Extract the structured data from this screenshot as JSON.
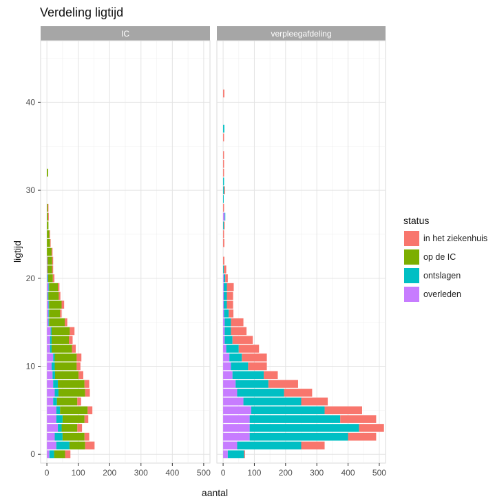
{
  "chart_data": {
    "type": "bar",
    "orientation": "horizontal",
    "stacked": true,
    "title": "Verdeling ligtijd",
    "xlabel": "aantal",
    "ylabel": "ligtijd",
    "xlim": [
      -20,
      520
    ],
    "ylim": [
      -1,
      47
    ],
    "xticks": [
      0,
      100,
      200,
      300,
      400,
      500
    ],
    "yticks": [
      0,
      10,
      20,
      30,
      40
    ],
    "grid": true,
    "legend": {
      "title": "status",
      "position": "right"
    },
    "stack_order": [
      "overleden",
      "ontslagen",
      "op de IC",
      "in het ziekenhuis"
    ],
    "series": [
      {
        "name": "in het ziekenhuis",
        "color": "#F8766D"
      },
      {
        "name": "op de IC",
        "color": "#7CAE00"
      },
      {
        "name": "ontslagen",
        "color": "#00BFC4"
      },
      {
        "name": "overleden",
        "color": "#C77CFF"
      }
    ],
    "panels": [
      {
        "title": "IC",
        "data": [
          {
            "y": 0,
            "overleden": 8,
            "ontslagen": 15,
            "op de IC": 35,
            "in het ziekenhuis": 17
          },
          {
            "y": 1,
            "overleden": 30,
            "ontslagen": 42,
            "op de IC": 50,
            "in het ziekenhuis": 30
          },
          {
            "y": 2,
            "overleden": 25,
            "ontslagen": 25,
            "op de IC": 70,
            "in het ziekenhuis": 15
          },
          {
            "y": 3,
            "overleden": 35,
            "ontslagen": 12,
            "op de IC": 50,
            "in het ziekenhuis": 15
          },
          {
            "y": 4,
            "overleden": 30,
            "ontslagen": 20,
            "op de IC": 70,
            "in het ziekenhuis": 12
          },
          {
            "y": 5,
            "overleden": 30,
            "ontslagen": 12,
            "op de IC": 88,
            "in het ziekenhuis": 15
          },
          {
            "y": 6,
            "overleden": 20,
            "ontslagen": 12,
            "op de IC": 65,
            "in het ziekenhuis": 12
          },
          {
            "y": 7,
            "overleden": 25,
            "ontslagen": 12,
            "op de IC": 85,
            "in het ziekenhuis": 15
          },
          {
            "y": 8,
            "overleden": 20,
            "ontslagen": 15,
            "op de IC": 85,
            "in het ziekenhuis": 15
          },
          {
            "y": 9,
            "overleden": 18,
            "ontslagen": 8,
            "op de IC": 75,
            "in het ziekenhuis": 15
          },
          {
            "y": 10,
            "overleden": 15,
            "ontslagen": 10,
            "op de IC": 70,
            "in het ziekenhuis": 12
          },
          {
            "y": 11,
            "overleden": 20,
            "ontslagen": 5,
            "op de IC": 70,
            "in het ziekenhuis": 15
          },
          {
            "y": 12,
            "overleden": 10,
            "ontslagen": 5,
            "op de IC": 65,
            "in het ziekenhuis": 12
          },
          {
            "y": 13,
            "overleden": 10,
            "ontslagen": 5,
            "op de IC": 55,
            "in het ziekenhuis": 12
          },
          {
            "y": 14,
            "overleden": 12,
            "ontslagen": 3,
            "op de IC": 58,
            "in het ziekenhuis": 15
          },
          {
            "y": 15,
            "overleden": 5,
            "ontslagen": 2,
            "op de IC": 50,
            "in het ziekenhuis": 8
          },
          {
            "y": 16,
            "overleden": 5,
            "ontslagen": 2,
            "op de IC": 35,
            "in het ziekenhuis": 5
          },
          {
            "y": 17,
            "overleden": 5,
            "ontslagen": 2,
            "op de IC": 40,
            "in het ziekenhuis": 8
          },
          {
            "y": 18,
            "overleden": 3,
            "ontslagen": 2,
            "op de IC": 33,
            "in het ziekenhuis": 5
          },
          {
            "y": 19,
            "overleden": 5,
            "ontslagen": 2,
            "op de IC": 28,
            "in het ziekenhuis": 5
          },
          {
            "y": 20,
            "overleden": 2,
            "ontslagen": 2,
            "op de IC": 15,
            "in het ziekenhuis": 5
          },
          {
            "y": 21,
            "overleden": 2,
            "ontslagen": 0,
            "op de IC": 15,
            "in het ziekenhuis": 3
          },
          {
            "y": 22,
            "overleden": 2,
            "ontslagen": 0,
            "op de IC": 15,
            "in het ziekenhuis": 3
          },
          {
            "y": 23,
            "overleden": 0,
            "ontslagen": 0,
            "op de IC": 15,
            "in het ziekenhuis": 3
          },
          {
            "y": 24,
            "overleden": 0,
            "ontslagen": 0,
            "op de IC": 10,
            "in het ziekenhuis": 2
          },
          {
            "y": 25,
            "overleden": 0,
            "ontslagen": 0,
            "op de IC": 8,
            "in het ziekenhuis": 2
          },
          {
            "y": 26,
            "overleden": 0,
            "ontslagen": 0,
            "op de IC": 5,
            "in het ziekenhuis": 0
          },
          {
            "y": 27,
            "overleden": 0,
            "ontslagen": 0,
            "op de IC": 4,
            "in het ziekenhuis": 2
          },
          {
            "y": 28,
            "overleden": 0,
            "ontslagen": 0,
            "op de IC": 3,
            "in het ziekenhuis": 2
          },
          {
            "y": 29,
            "overleden": 0,
            "ontslagen": 0,
            "op de IC": 0,
            "in het ziekenhuis": 0
          },
          {
            "y": 30,
            "overleden": 0,
            "ontslagen": 0,
            "op de IC": 0,
            "in het ziekenhuis": 0
          },
          {
            "y": 31,
            "overleden": 0,
            "ontslagen": 0,
            "op de IC": 0,
            "in het ziekenhuis": 0
          },
          {
            "y": 32,
            "overleden": 0,
            "ontslagen": 0,
            "op de IC": 4,
            "in het ziekenhuis": 0
          }
        ]
      },
      {
        "title": "verpleegafdeling",
        "data": [
          {
            "y": 0,
            "overleden": 15,
            "ontslagen": 52,
            "op de IC": 0,
            "in het ziekenhuis": 3
          },
          {
            "y": 1,
            "overleden": 45,
            "ontslagen": 205,
            "op de IC": 0,
            "in het ziekenhuis": 75
          },
          {
            "y": 2,
            "overleden": 85,
            "ontslagen": 315,
            "op de IC": 0,
            "in het ziekenhuis": 90
          },
          {
            "y": 3,
            "overleden": 85,
            "ontslagen": 350,
            "op de IC": 0,
            "in het ziekenhuis": 80
          },
          {
            "y": 4,
            "overleden": 85,
            "ontslagen": 290,
            "op de IC": 0,
            "in het ziekenhuis": 115
          },
          {
            "y": 5,
            "overleden": 90,
            "ontslagen": 235,
            "op de IC": 0,
            "in het ziekenhuis": 120
          },
          {
            "y": 6,
            "overleden": 65,
            "ontslagen": 185,
            "op de IC": 0,
            "in het ziekenhuis": 85
          },
          {
            "y": 7,
            "overleden": 45,
            "ontslagen": 150,
            "op de IC": 0,
            "in het ziekenhuis": 90
          },
          {
            "y": 8,
            "overleden": 40,
            "ontslagen": 105,
            "op de IC": 0,
            "in het ziekenhuis": 95
          },
          {
            "y": 9,
            "overleden": 30,
            "ontslagen": 100,
            "op de IC": 0,
            "in het ziekenhuis": 45
          },
          {
            "y": 10,
            "overleden": 25,
            "ontslagen": 55,
            "op de IC": 0,
            "in het ziekenhuis": 60
          },
          {
            "y": 11,
            "overleden": 20,
            "ontslagen": 40,
            "op de IC": 0,
            "in het ziekenhuis": 80
          },
          {
            "y": 12,
            "overleden": 10,
            "ontslagen": 40,
            "op de IC": 0,
            "in het ziekenhuis": 65
          },
          {
            "y": 13,
            "overleden": 5,
            "ontslagen": 25,
            "op de IC": 0,
            "in het ziekenhuis": 65
          },
          {
            "y": 14,
            "overleden": 5,
            "ontslagen": 20,
            "op de IC": 0,
            "in het ziekenhuis": 50
          },
          {
            "y": 15,
            "overleden": 5,
            "ontslagen": 20,
            "op de IC": 0,
            "in het ziekenhuis": 40
          },
          {
            "y": 16,
            "overleden": 3,
            "ontslagen": 15,
            "op de IC": 0,
            "in het ziekenhuis": 15
          },
          {
            "y": 17,
            "overleden": 2,
            "ontslagen": 10,
            "op de IC": 0,
            "in het ziekenhuis": 20
          },
          {
            "y": 18,
            "overleden": 2,
            "ontslagen": 10,
            "op de IC": 0,
            "in het ziekenhuis": 20
          },
          {
            "y": 19,
            "overleden": 2,
            "ontslagen": 10,
            "op de IC": 0,
            "in het ziekenhuis": 22
          },
          {
            "y": 20,
            "overleden": 2,
            "ontslagen": 5,
            "op de IC": 0,
            "in het ziekenhuis": 8
          },
          {
            "y": 21,
            "overleden": 0,
            "ontslagen": 2,
            "op de IC": 0,
            "in het ziekenhuis": 8
          },
          {
            "y": 22,
            "overleden": 0,
            "ontslagen": 0,
            "op de IC": 0,
            "in het ziekenhuis": 4
          },
          {
            "y": 23,
            "overleden": 0,
            "ontslagen": 0,
            "op de IC": 0,
            "in het ziekenhuis": 0
          },
          {
            "y": 24,
            "overleden": 0,
            "ontslagen": 0,
            "op de IC": 0,
            "in het ziekenhuis": 4
          },
          {
            "y": 25,
            "overleden": 0,
            "ontslagen": 0,
            "op de IC": 0,
            "in het ziekenhuis": 3
          },
          {
            "y": 26,
            "overleden": 0,
            "ontslagen": 2,
            "op de IC": 0,
            "in het ziekenhuis": 3
          },
          {
            "y": 27,
            "overleden": 5,
            "ontslagen": 2,
            "op de IC": 0,
            "in het ziekenhuis": 0
          },
          {
            "y": 28,
            "overleden": 0,
            "ontslagen": 0,
            "op de IC": 0,
            "in het ziekenhuis": 3
          },
          {
            "y": 29,
            "overleden": 0,
            "ontslagen": 2,
            "op de IC": 0,
            "in het ziekenhuis": 0
          },
          {
            "y": 30,
            "overleden": 0,
            "ontslagen": 3,
            "op de IC": 0,
            "in het ziekenhuis": 3
          },
          {
            "y": 31,
            "overleden": 0,
            "ontslagen": 3,
            "op de IC": 0,
            "in het ziekenhuis": 0
          },
          {
            "y": 32,
            "overleden": 0,
            "ontslagen": 0,
            "op de IC": 0,
            "in het ziekenhuis": 3
          },
          {
            "y": 33,
            "overleden": 0,
            "ontslagen": 0,
            "op de IC": 0,
            "in het ziekenhuis": 3
          },
          {
            "y": 34,
            "overleden": 0,
            "ontslagen": 0,
            "op de IC": 0,
            "in het ziekenhuis": 3
          },
          {
            "y": 36,
            "overleden": 0,
            "ontslagen": 0,
            "op de IC": 0,
            "in het ziekenhuis": 3
          },
          {
            "y": 37,
            "overleden": 0,
            "ontslagen": 4,
            "op de IC": 0,
            "in het ziekenhuis": 0
          },
          {
            "y": 41,
            "overleden": 0,
            "ontslagen": 0,
            "op de IC": 0,
            "in het ziekenhuis": 4
          }
        ]
      }
    ]
  }
}
